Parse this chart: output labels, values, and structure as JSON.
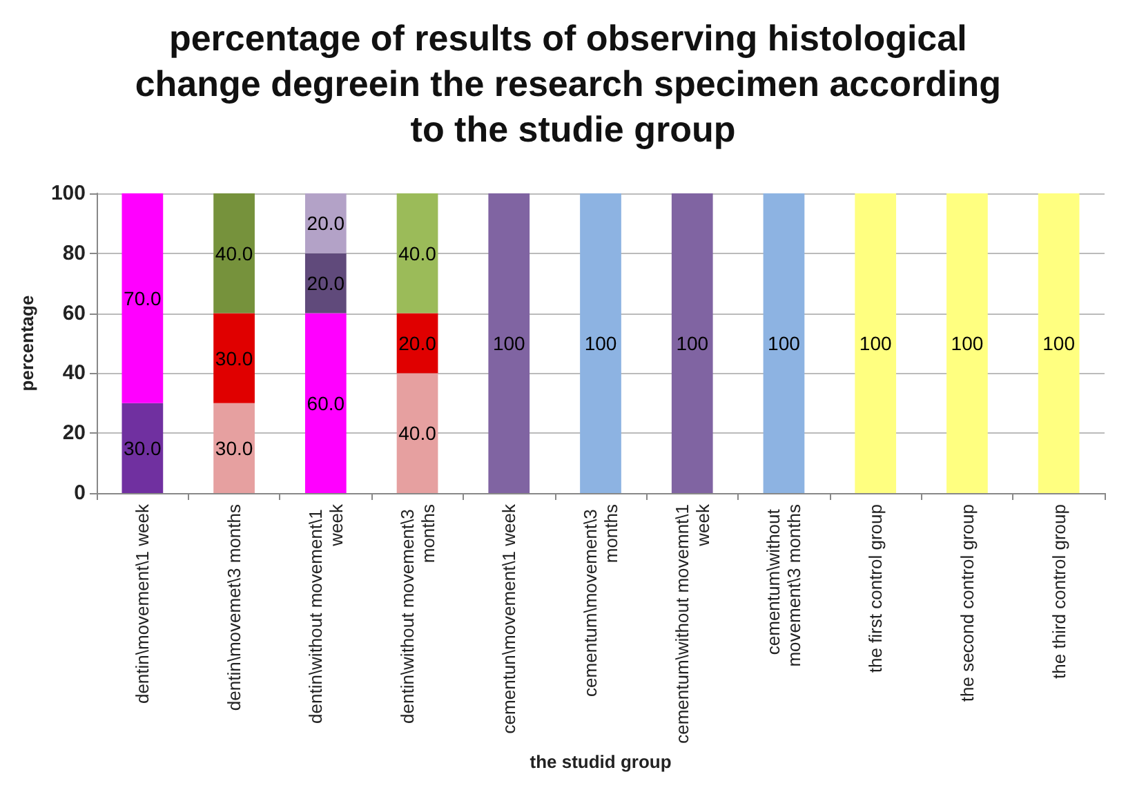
{
  "chart_data": {
    "type": "bar",
    "stacked": true,
    "title": "percentage of results of observing histological change degreein the research specimen according to the studie group",
    "xlabel": "the studid group",
    "ylabel": "percentage",
    "categories": [
      "dentin\\movement\\1 week",
      "dentin\\movemet\\3 months",
      "dentin\\without movement\\1 week",
      "dentin\\without movement\\3 months",
      "cementun\\movement\\1 week",
      "cementum\\movement\\3 months",
      "cementum\\without movemnt\\1 week",
      "cementum\\without movement\\3 months",
      "the first control group",
      "the second control group",
      "the third control group"
    ],
    "series": [
      {
        "values": [
          30,
          30,
          60,
          40,
          100,
          100,
          100,
          100,
          100,
          100,
          100
        ],
        "colors": [
          "#7030a0",
          "#e6a0a0",
          "#ff00ff",
          "#e6a0a0",
          "#8064a2",
          "#8db3e2",
          "#8064a2",
          "#8db3e2",
          "#ffff80",
          "#ffff80",
          "#ffff80"
        ],
        "value_labels": [
          "30.0",
          "30.0",
          "60.0",
          "40.0",
          "100",
          "100",
          "100",
          "100",
          "100",
          "100",
          "100"
        ]
      },
      {
        "values": [
          70,
          30,
          20,
          20,
          null,
          null,
          null,
          null,
          null,
          null,
          null
        ],
        "colors": [
          "#ff00ff",
          "#e00000",
          "#604a7b",
          "#e00000",
          null,
          null,
          null,
          null,
          null,
          null,
          null
        ],
        "value_labels": [
          "70.0",
          "30.0",
          "20.0",
          "20.0",
          null,
          null,
          null,
          null,
          null,
          null,
          null
        ]
      },
      {
        "values": [
          null,
          40,
          20,
          40,
          null,
          null,
          null,
          null,
          null,
          null,
          null
        ],
        "colors": [
          null,
          "#76923c",
          "#b3a2c7",
          "#9bbb59",
          null,
          null,
          null,
          null,
          null,
          null,
          null
        ],
        "value_labels": [
          null,
          "40.0",
          "20.0",
          "40.0",
          null,
          null,
          null,
          null,
          null,
          null,
          null
        ]
      }
    ],
    "ylim": [
      0,
      100
    ],
    "yticks": [
      0,
      20,
      40,
      60,
      80,
      100
    ],
    "grid": "y"
  }
}
